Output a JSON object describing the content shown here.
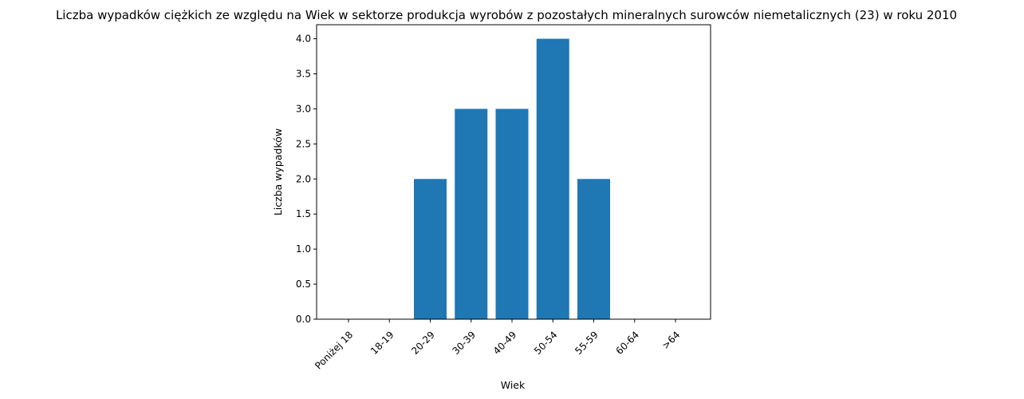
{
  "chart_data": {
    "type": "bar",
    "title": "Liczba wypadków ciężkich ze względu na Wiek w sektorze produkcja wyrobów z pozostałych mineralnych surowców niemetalicznych (23)  w roku 2010",
    "xlabel": "Wiek",
    "ylabel": "Liczba wypadków",
    "categories": [
      "Poniżej 18",
      "18-19",
      "20-29",
      "30-39",
      "40-49",
      "50-54",
      "55-59",
      "60-64",
      ">64"
    ],
    "values": [
      0,
      0,
      2,
      3,
      3,
      4,
      2,
      0,
      0
    ],
    "ylim": [
      0,
      4.2
    ],
    "yticks": [
      "0.0",
      "0.5",
      "1.0",
      "1.5",
      "2.0",
      "2.5",
      "3.0",
      "3.5",
      "4.0"
    ],
    "grid": false,
    "bar_color": "#1f77b4"
  }
}
